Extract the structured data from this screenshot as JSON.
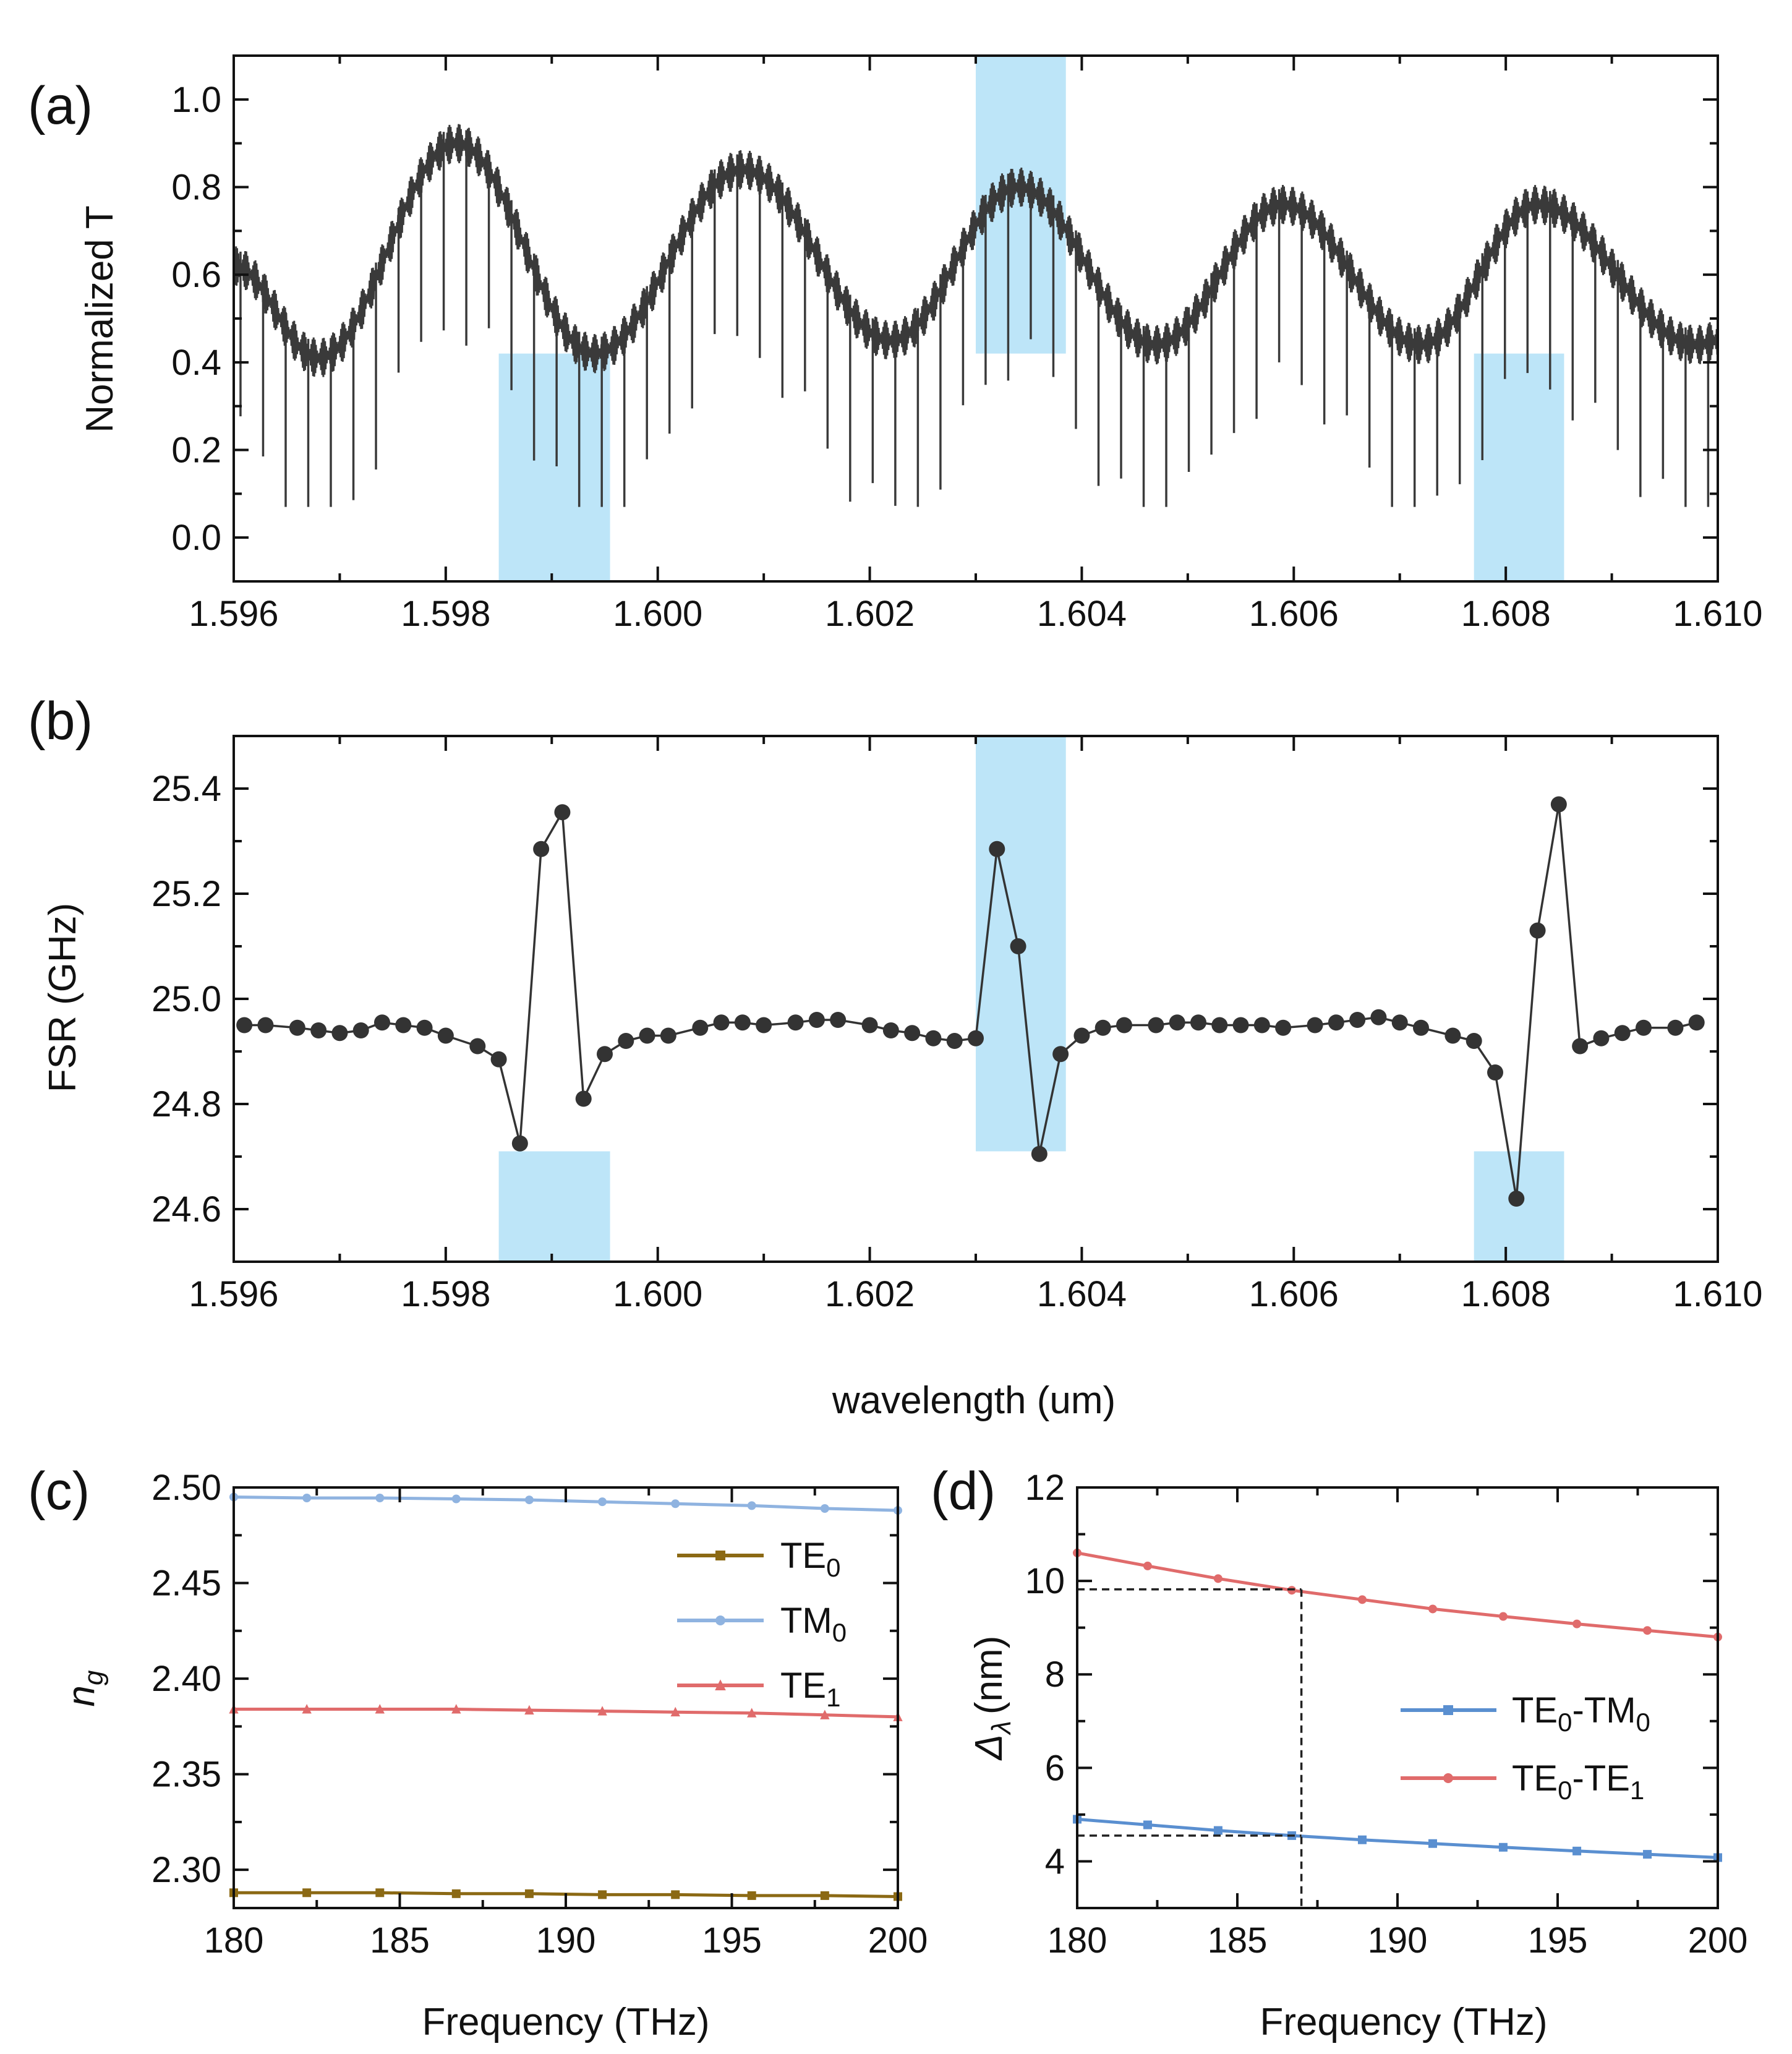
{
  "figure": {
    "xlabel_shared": "wavelength (um)"
  },
  "chart_data": [
    {
      "id": "a",
      "panel_label": "(a)",
      "type": "line",
      "title": "",
      "xlabel": "",
      "ylabel": "Normalized T",
      "xlim": [
        1.596,
        1.61
      ],
      "ylim": [
        -0.1,
        1.1
      ],
      "xticks": [
        1.596,
        1.598,
        1.6,
        1.602,
        1.604,
        1.606,
        1.608,
        1.61
      ],
      "xtick_labels": [
        "1.596",
        "1.598",
        "1.600",
        "1.602",
        "1.604",
        "1.606",
        "1.608",
        "1.610"
      ],
      "yticks": [
        0.0,
        0.2,
        0.4,
        0.6,
        0.8,
        1.0
      ],
      "ytick_labels": [
        "0.0",
        "0.2",
        "0.4",
        "0.6",
        "0.8",
        "1.0"
      ],
      "line_color": "#3a3a3a",
      "envelope_center": [
        [
          1.596,
          0.62
        ],
        [
          1.5968,
          0.41
        ],
        [
          1.5981,
          0.9
        ],
        [
          1.5994,
          0.42
        ],
        [
          1.6008,
          0.84
        ],
        [
          1.6022,
          0.45
        ],
        [
          1.6034,
          0.8
        ],
        [
          1.6047,
          0.44
        ],
        [
          1.6059,
          0.76
        ],
        [
          1.6072,
          0.44
        ],
        [
          1.6083,
          0.76
        ],
        [
          1.6098,
          0.44
        ],
        [
          1.61,
          0.45
        ]
      ],
      "ripple_amplitude": 0.09,
      "resonance_period_um": 0.000213,
      "resonance_dip_depth": 0.3,
      "highlight_regions": [
        {
          "x": [
            1.5985,
            1.59955
          ],
          "y": [
            -0.1,
            0.42
          ]
        },
        {
          "x": [
            1.603,
            1.60385
          ],
          "y": [
            0.42,
            1.1
          ]
        },
        {
          "x": [
            1.6077,
            1.60855
          ],
          "y": [
            -0.1,
            0.42
          ]
        }
      ],
      "highlight_color": "#bde5f8"
    },
    {
      "id": "b",
      "panel_label": "(b)",
      "type": "scatter",
      "title": "",
      "xlabel": "wavelength (um)",
      "ylabel": "FSR (GHz)",
      "xlim": [
        1.596,
        1.61
      ],
      "ylim": [
        24.5,
        25.5
      ],
      "xticks": [
        1.596,
        1.598,
        1.6,
        1.602,
        1.604,
        1.606,
        1.608,
        1.61
      ],
      "xtick_labels": [
        "1.596",
        "1.598",
        "1.600",
        "1.602",
        "1.604",
        "1.606",
        "1.608",
        "1.610"
      ],
      "yticks": [
        24.6,
        24.8,
        25.0,
        25.2,
        25.4
      ],
      "ytick_labels": [
        "24.6",
        "24.8",
        "25.0",
        "25.2",
        "25.4"
      ],
      "marker_color": "#333333",
      "x": [
        1.5961,
        1.5963,
        1.5966,
        1.5968,
        1.597,
        1.5972,
        1.5974,
        1.5976,
        1.5978,
        1.598,
        1.5983,
        1.5985,
        1.5987,
        1.5989,
        1.5991,
        1.5993,
        1.5995,
        1.5997,
        1.5999,
        1.6001,
        1.6004,
        1.6006,
        1.6008,
        1.601,
        1.6013,
        1.6015,
        1.6017,
        1.602,
        1.6022,
        1.6024,
        1.6026,
        1.6028,
        1.603,
        1.6032,
        1.6034,
        1.6036,
        1.6038,
        1.604,
        1.6042,
        1.6044,
        1.6047,
        1.6049,
        1.6051,
        1.6053,
        1.6055,
        1.6057,
        1.6059,
        1.6062,
        1.6064,
        1.6066,
        1.6068,
        1.607,
        1.6072,
        1.6075,
        1.6077,
        1.6079,
        1.6081,
        1.6083,
        1.6085,
        1.6087,
        1.6089,
        1.6091,
        1.6093,
        1.6096,
        1.6098
      ],
      "y": [
        24.95,
        24.95,
        24.945,
        24.94,
        24.935,
        24.94,
        24.955,
        24.95,
        24.945,
        24.93,
        24.91,
        24.885,
        24.725,
        25.285,
        25.355,
        24.81,
        24.895,
        24.92,
        24.93,
        24.93,
        24.945,
        24.955,
        24.955,
        24.95,
        24.955,
        24.96,
        24.96,
        24.95,
        24.94,
        24.935,
        24.925,
        24.92,
        24.925,
        25.285,
        25.1,
        24.705,
        24.895,
        24.93,
        24.945,
        24.95,
        24.95,
        24.955,
        24.955,
        24.95,
        24.95,
        24.95,
        24.945,
        24.95,
        24.955,
        24.96,
        24.965,
        24.955,
        24.945,
        24.93,
        24.92,
        24.86,
        24.62,
        25.13,
        25.37,
        24.91,
        24.925,
        24.935,
        24.945,
        24.945,
        24.955
      ],
      "highlight_regions": [
        {
          "x": [
            1.5985,
            1.59955
          ],
          "y": [
            24.5,
            24.71
          ]
        },
        {
          "x": [
            1.603,
            1.60385
          ],
          "y": [
            24.71,
            25.5
          ]
        },
        {
          "x": [
            1.6077,
            1.60855
          ],
          "y": [
            24.5,
            24.71
          ]
        }
      ],
      "highlight_color": "#bde5f8"
    },
    {
      "id": "c",
      "panel_label": "(c)",
      "type": "line",
      "title": "",
      "xlabel": "Frequency (THz)",
      "ylabel": "n",
      "ylabel_subscript": "g",
      "xlim": [
        180,
        200
      ],
      "ylim": [
        2.28,
        2.5
      ],
      "xticks": [
        180,
        185,
        190,
        195,
        200
      ],
      "xtick_labels": [
        "180",
        "185",
        "190",
        "195",
        "200"
      ],
      "yticks": [
        2.3,
        2.35,
        2.4,
        2.45,
        2.5
      ],
      "ytick_labels": [
        "2.30",
        "2.35",
        "2.40",
        "2.45",
        "2.50"
      ],
      "legend_position": "upper-right",
      "x": [
        180,
        182.2,
        184.4,
        186.7,
        188.9,
        191.1,
        193.3,
        195.6,
        197.8,
        200
      ],
      "series": [
        {
          "name": "TE",
          "sub": "0",
          "color": "#8b6914",
          "marker": "square",
          "values": [
            2.288,
            2.288,
            2.288,
            2.2875,
            2.2875,
            2.287,
            2.287,
            2.2865,
            2.2865,
            2.286
          ]
        },
        {
          "name": "TM",
          "sub": "0",
          "color": "#8fb3e0",
          "marker": "circle",
          "values": [
            2.495,
            2.4945,
            2.4945,
            2.494,
            2.4935,
            2.4925,
            2.4915,
            2.4905,
            2.489,
            2.488
          ]
        },
        {
          "name": "TE",
          "sub": "1",
          "color": "#e06b6b",
          "marker": "triangle",
          "values": [
            2.384,
            2.384,
            2.384,
            2.384,
            2.3835,
            2.383,
            2.3825,
            2.382,
            2.381,
            2.38
          ]
        }
      ]
    },
    {
      "id": "d",
      "panel_label": "(d)",
      "type": "line",
      "title": "",
      "xlabel": "Frequency (THz)",
      "ylabel": "Δ",
      "ylabel_subscript": "λ",
      "ylabel_suffix": "(nm)",
      "xlim": [
        180,
        200
      ],
      "ylim": [
        3,
        12
      ],
      "xticks": [
        180,
        185,
        190,
        195,
        200
      ],
      "xtick_labels": [
        "180",
        "185",
        "190",
        "195",
        "200"
      ],
      "yticks": [
        4,
        6,
        8,
        10,
        12
      ],
      "ytick_labels": [
        "4",
        "6",
        "8",
        "10",
        "12"
      ],
      "legend_position": "center-right",
      "x": [
        180,
        182.2,
        184.4,
        186.7,
        188.9,
        191.1,
        193.3,
        195.6,
        197.8,
        200
      ],
      "series": [
        {
          "name": "TE",
          "sub": "0",
          "name2": "-TM",
          "sub2": "0",
          "color": "#5a8fd0",
          "marker": "square",
          "values": [
            4.9,
            4.78,
            4.66,
            4.55,
            4.46,
            4.38,
            4.3,
            4.22,
            4.15,
            4.08
          ]
        },
        {
          "name": "TE",
          "sub": "0",
          "name2": "-TE",
          "sub2": "1",
          "color": "#e06b6b",
          "marker": "circle",
          "values": [
            10.6,
            10.32,
            10.05,
            9.8,
            9.6,
            9.4,
            9.24,
            9.08,
            8.94,
            8.8
          ]
        }
      ],
      "guides": {
        "x": 187,
        "y": [
          9.82,
          4.55
        ],
        "color": "#222222"
      }
    }
  ]
}
